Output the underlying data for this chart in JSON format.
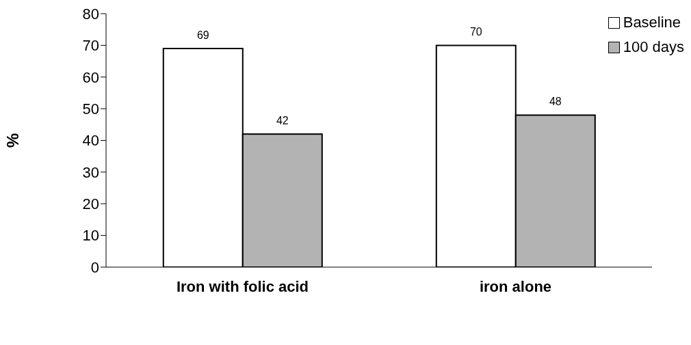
{
  "chart_data": {
    "type": "bar",
    "ylabel": "%",
    "categories": [
      "Iron with folic acid",
      "iron alone"
    ],
    "series": [
      {
        "name": "Baseline",
        "color": "#ffffff",
        "values": [
          69,
          70
        ]
      },
      {
        "name": "100 days",
        "color": "#b3b3b3",
        "values": [
          42,
          48
        ]
      }
    ],
    "ylim": [
      0,
      80
    ],
    "yticks": [
      0,
      10,
      20,
      30,
      40,
      50,
      60,
      70,
      80
    ],
    "grid": false,
    "legend": "top right",
    "data_labels": true
  }
}
